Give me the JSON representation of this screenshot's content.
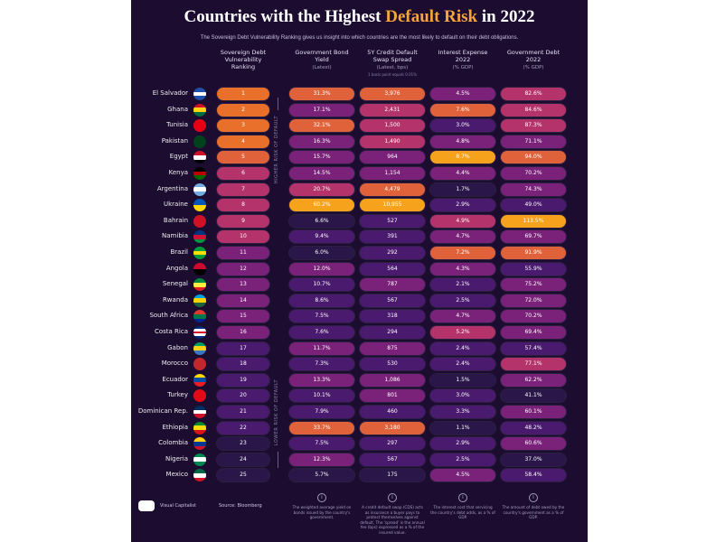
{
  "title": {
    "pre": "Countries with the Highest ",
    "highlight": "Default Risk",
    "post": " in 2022"
  },
  "subtitle": "The Sovereign Debt Vulnerability Ranking gives us insight into which countries are the most likely to default on their debt obligations.",
  "columns": [
    {
      "title": "Sovereign Debt Vulnerability Ranking",
      "sub": ""
    },
    {
      "title": "Government Bond Yield",
      "sub": "(Latest)"
    },
    {
      "title": "5Y Credit Default Swap Spread",
      "sub": "(Latest, bps)",
      "note": "1 basis point equals 0.01%"
    },
    {
      "title": "Interest Expense 2022",
      "sub": "(% GDP)"
    },
    {
      "title": "Government Debt 2022",
      "sub": "(% GDP)"
    }
  ],
  "axis": {
    "higher": "HIGHER RISK OF DEFAULT",
    "lower": "LOWER RISK OF DEFAULT"
  },
  "colors": {
    "background": "#1b0c30",
    "accent": "#f6a53a",
    "scale": [
      "#2a1648",
      "#4a1a6e",
      "#7a2279",
      "#b3336a",
      "#e0623a",
      "#f6a21c"
    ]
  },
  "rows": [
    {
      "country": "El Salvador",
      "rank": "1",
      "yield": "31.3%",
      "cds": "3,976",
      "interest": "4.5%",
      "debt": "82.6%",
      "flag": [
        "#1f4fa8",
        "#ffffff",
        "#1f4fa8"
      ]
    },
    {
      "country": "Ghana",
      "rank": "2",
      "yield": "17.1%",
      "cds": "2,431",
      "interest": "7.6%",
      "debt": "84.6%",
      "flag": [
        "#ce1126",
        "#fcd116",
        "#006b3f"
      ]
    },
    {
      "country": "Tunisia",
      "rank": "3",
      "yield": "32.1%",
      "cds": "1,500",
      "interest": "3.0%",
      "debt": "87.3%",
      "flag": [
        "#e70013",
        "#e70013",
        "#e70013"
      ]
    },
    {
      "country": "Pakistan",
      "rank": "4",
      "yield": "16.3%",
      "cds": "1,490",
      "interest": "4.8%",
      "debt": "71.1%",
      "flag": [
        "#01411c",
        "#01411c",
        "#01411c"
      ]
    },
    {
      "country": "Egypt",
      "rank": "5",
      "yield": "15.7%",
      "cds": "964",
      "interest": "8.7%",
      "debt": "94.0%",
      "flag": [
        "#ce1126",
        "#ffffff",
        "#000000"
      ]
    },
    {
      "country": "Kenya",
      "rank": "6",
      "yield": "14.5%",
      "cds": "1,154",
      "interest": "4.4%",
      "debt": "70.2%",
      "flag": [
        "#000000",
        "#bb0000",
        "#006600"
      ]
    },
    {
      "country": "Argentina",
      "rank": "7",
      "yield": "20.7%",
      "cds": "4,479",
      "interest": "1.7%",
      "debt": "74.3%",
      "flag": [
        "#74acdf",
        "#ffffff",
        "#74acdf"
      ]
    },
    {
      "country": "Ukraine",
      "rank": "8",
      "yield": "60.2%",
      "cds": "10,955",
      "interest": "2.9%",
      "debt": "49.0%",
      "flag": [
        "#0057b7",
        "#ffd700"
      ]
    },
    {
      "country": "Bahrain",
      "rank": "9",
      "yield": "6.6%",
      "cds": "527",
      "interest": "4.9%",
      "debt": "113.5%",
      "flag": [
        "#ce1126",
        "#ce1126"
      ]
    },
    {
      "country": "Namibia",
      "rank": "10",
      "yield": "9.4%",
      "cds": "391",
      "interest": "4.7%",
      "debt": "69.7%",
      "flag": [
        "#003580",
        "#d21034",
        "#009543"
      ]
    },
    {
      "country": "Brazil",
      "rank": "11",
      "yield": "6.0%",
      "cds": "292",
      "interest": "7.2%",
      "debt": "91.9%",
      "flag": [
        "#009c3b",
        "#ffdf00",
        "#009c3b"
      ]
    },
    {
      "country": "Angola",
      "rank": "12",
      "yield": "12.0%",
      "cds": "564",
      "interest": "4.3%",
      "debt": "55.9%",
      "flag": [
        "#cc092f",
        "#000000"
      ]
    },
    {
      "country": "Senegal",
      "rank": "13",
      "yield": "10.7%",
      "cds": "787",
      "interest": "2.1%",
      "debt": "75.2%",
      "flag": [
        "#00853f",
        "#fdef42",
        "#e31b23"
      ]
    },
    {
      "country": "Rwanda",
      "rank": "14",
      "yield": "8.6%",
      "cds": "567",
      "interest": "2.5%",
      "debt": "72.0%",
      "flag": [
        "#00a1de",
        "#fad201",
        "#20603d"
      ]
    },
    {
      "country": "South Africa",
      "rank": "15",
      "yield": "7.5%",
      "cds": "318",
      "interest": "4.7%",
      "debt": "70.2%",
      "flag": [
        "#de3831",
        "#007a4d",
        "#002395"
      ]
    },
    {
      "country": "Costa Rica",
      "rank": "16",
      "yield": "7.6%",
      "cds": "294",
      "interest": "5.2%",
      "debt": "69.4%",
      "flag": [
        "#002b7f",
        "#ffffff",
        "#ce1126",
        "#ffffff",
        "#002b7f"
      ]
    },
    {
      "country": "Gabon",
      "rank": "17",
      "yield": "11.7%",
      "cds": "875",
      "interest": "2.4%",
      "debt": "57.4%",
      "flag": [
        "#009e60",
        "#fcd116",
        "#3a75c4"
      ]
    },
    {
      "country": "Morocco",
      "rank": "18",
      "yield": "7.3%",
      "cds": "530",
      "interest": "2.4%",
      "debt": "77.1%",
      "flag": [
        "#c1272d",
        "#c1272d"
      ]
    },
    {
      "country": "Ecuador",
      "rank": "19",
      "yield": "13.3%",
      "cds": "1,086",
      "interest": "1.5%",
      "debt": "62.2%",
      "flag": [
        "#ffdd00",
        "#034ea2",
        "#ed1c24"
      ]
    },
    {
      "country": "Turkey",
      "rank": "20",
      "yield": "10.1%",
      "cds": "801",
      "interest": "3.0%",
      "debt": "41.1%",
      "flag": [
        "#e30a17",
        "#e30a17"
      ]
    },
    {
      "country": "Dominican Rep.",
      "rank": "21",
      "yield": "7.9%",
      "cds": "460",
      "interest": "3.3%",
      "debt": "60.1%",
      "flag": [
        "#002d62",
        "#ffffff",
        "#ce1126"
      ]
    },
    {
      "country": "Ethiopia",
      "rank": "22",
      "yield": "33.7%",
      "cds": "3,180",
      "interest": "1.1%",
      "debt": "48.2%",
      "flag": [
        "#078930",
        "#fcdd09",
        "#da121a"
      ]
    },
    {
      "country": "Colombia",
      "rank": "23",
      "yield": "7.5%",
      "cds": "297",
      "interest": "2.9%",
      "debt": "60.6%",
      "flag": [
        "#fcd116",
        "#003893",
        "#ce1126"
      ]
    },
    {
      "country": "Nigeria",
      "rank": "24",
      "yield": "12.3%",
      "cds": "567",
      "interest": "2.5%",
      "debt": "37.0%",
      "flag": [
        "#008751",
        "#ffffff",
        "#008751"
      ]
    },
    {
      "country": "Mexico",
      "rank": "25",
      "yield": "5.7%",
      "cds": "175",
      "interest": "4.5%",
      "debt": "58.4%",
      "flag": [
        "#006847",
        "#ffffff",
        "#ce1126"
      ]
    }
  ],
  "footer": {
    "brand": "Visual Capitalist",
    "source": "Source: Bloomberg",
    "notes": [
      "The weighted average yield on bonds issued by the country's government.",
      "A credit default swap (CDS) acts as insurance a buyer pays to protect themselves against default. The 'spread' is the annual fee (bps) expressed as a % of the insured value.",
      "The interest cost that servicing the country's debt adds, as a % of GDP.",
      "The amount of debt owed by the country's government as a % of GDP."
    ],
    "info_icon": "i"
  }
}
